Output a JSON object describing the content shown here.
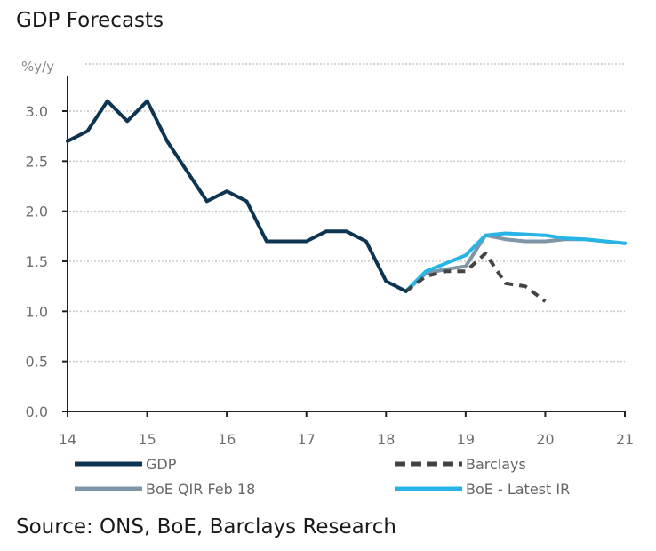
{
  "title": "GDP Forecasts",
  "source": "Source: ONS, BoE, Barclays Research",
  "chart_data": {
    "type": "line",
    "title": "GDP Forecasts",
    "xlabel": "",
    "ylabel": "%y/y",
    "xlim": [
      14,
      21
    ],
    "ylim": [
      0,
      3.5
    ],
    "x_ticks": [
      14,
      15,
      16,
      17,
      18,
      19,
      20,
      21
    ],
    "x_tick_labels": [
      "14",
      "15",
      "16",
      "17",
      "18",
      "19",
      "20",
      "21"
    ],
    "y_ticks": [
      0.0,
      0.5,
      1.0,
      1.5,
      2.0,
      2.5,
      3.0
    ],
    "y_tick_labels": [
      "0.0",
      "0.5",
      "1.0",
      "1.5",
      "2.0",
      "2.5",
      "3.0"
    ],
    "grid": "horizontal-dotted",
    "legend_position": "bottom",
    "series": [
      {
        "name": "GDP",
        "color": "#0d3552",
        "style": "solid",
        "x": [
          14.0,
          14.25,
          14.5,
          14.75,
          15.0,
          15.25,
          15.5,
          15.75,
          16.0,
          16.25,
          16.5,
          16.75,
          17.0,
          17.25,
          17.5,
          17.75,
          18.0,
          18.25
        ],
        "y": [
          2.7,
          2.8,
          3.1,
          2.9,
          3.1,
          2.7,
          2.4,
          2.1,
          2.2,
          2.1,
          1.7,
          1.7,
          1.7,
          1.8,
          1.8,
          1.7,
          1.3,
          1.2
        ]
      },
      {
        "name": "Barclays",
        "color": "#444444",
        "style": "dashed",
        "x": [
          18.25,
          18.5,
          18.75,
          19.0,
          19.25,
          19.5,
          19.75,
          20.0
        ],
        "y": [
          1.2,
          1.35,
          1.4,
          1.4,
          1.58,
          1.28,
          1.25,
          1.1
        ]
      },
      {
        "name": "BoE QIR Feb 18",
        "color": "#7f95a8",
        "style": "solid",
        "x": [
          18.25,
          18.5,
          18.75,
          19.0,
          19.25,
          19.5,
          19.75,
          20.0,
          20.25,
          20.5,
          20.75,
          21.0
        ],
        "y": [
          1.2,
          1.38,
          1.42,
          1.45,
          1.76,
          1.72,
          1.7,
          1.7,
          1.72,
          1.72,
          1.7,
          1.68
        ]
      },
      {
        "name": "BoE - Latest IR",
        "color": "#27b5e8",
        "style": "solid",
        "x": [
          18.25,
          18.5,
          18.75,
          19.0,
          19.25,
          19.5,
          19.75,
          20.0,
          20.25,
          20.5,
          20.75,
          21.0
        ],
        "y": [
          1.2,
          1.4,
          1.48,
          1.56,
          1.76,
          1.78,
          1.77,
          1.76,
          1.73,
          1.72,
          1.7,
          1.68
        ]
      }
    ]
  }
}
